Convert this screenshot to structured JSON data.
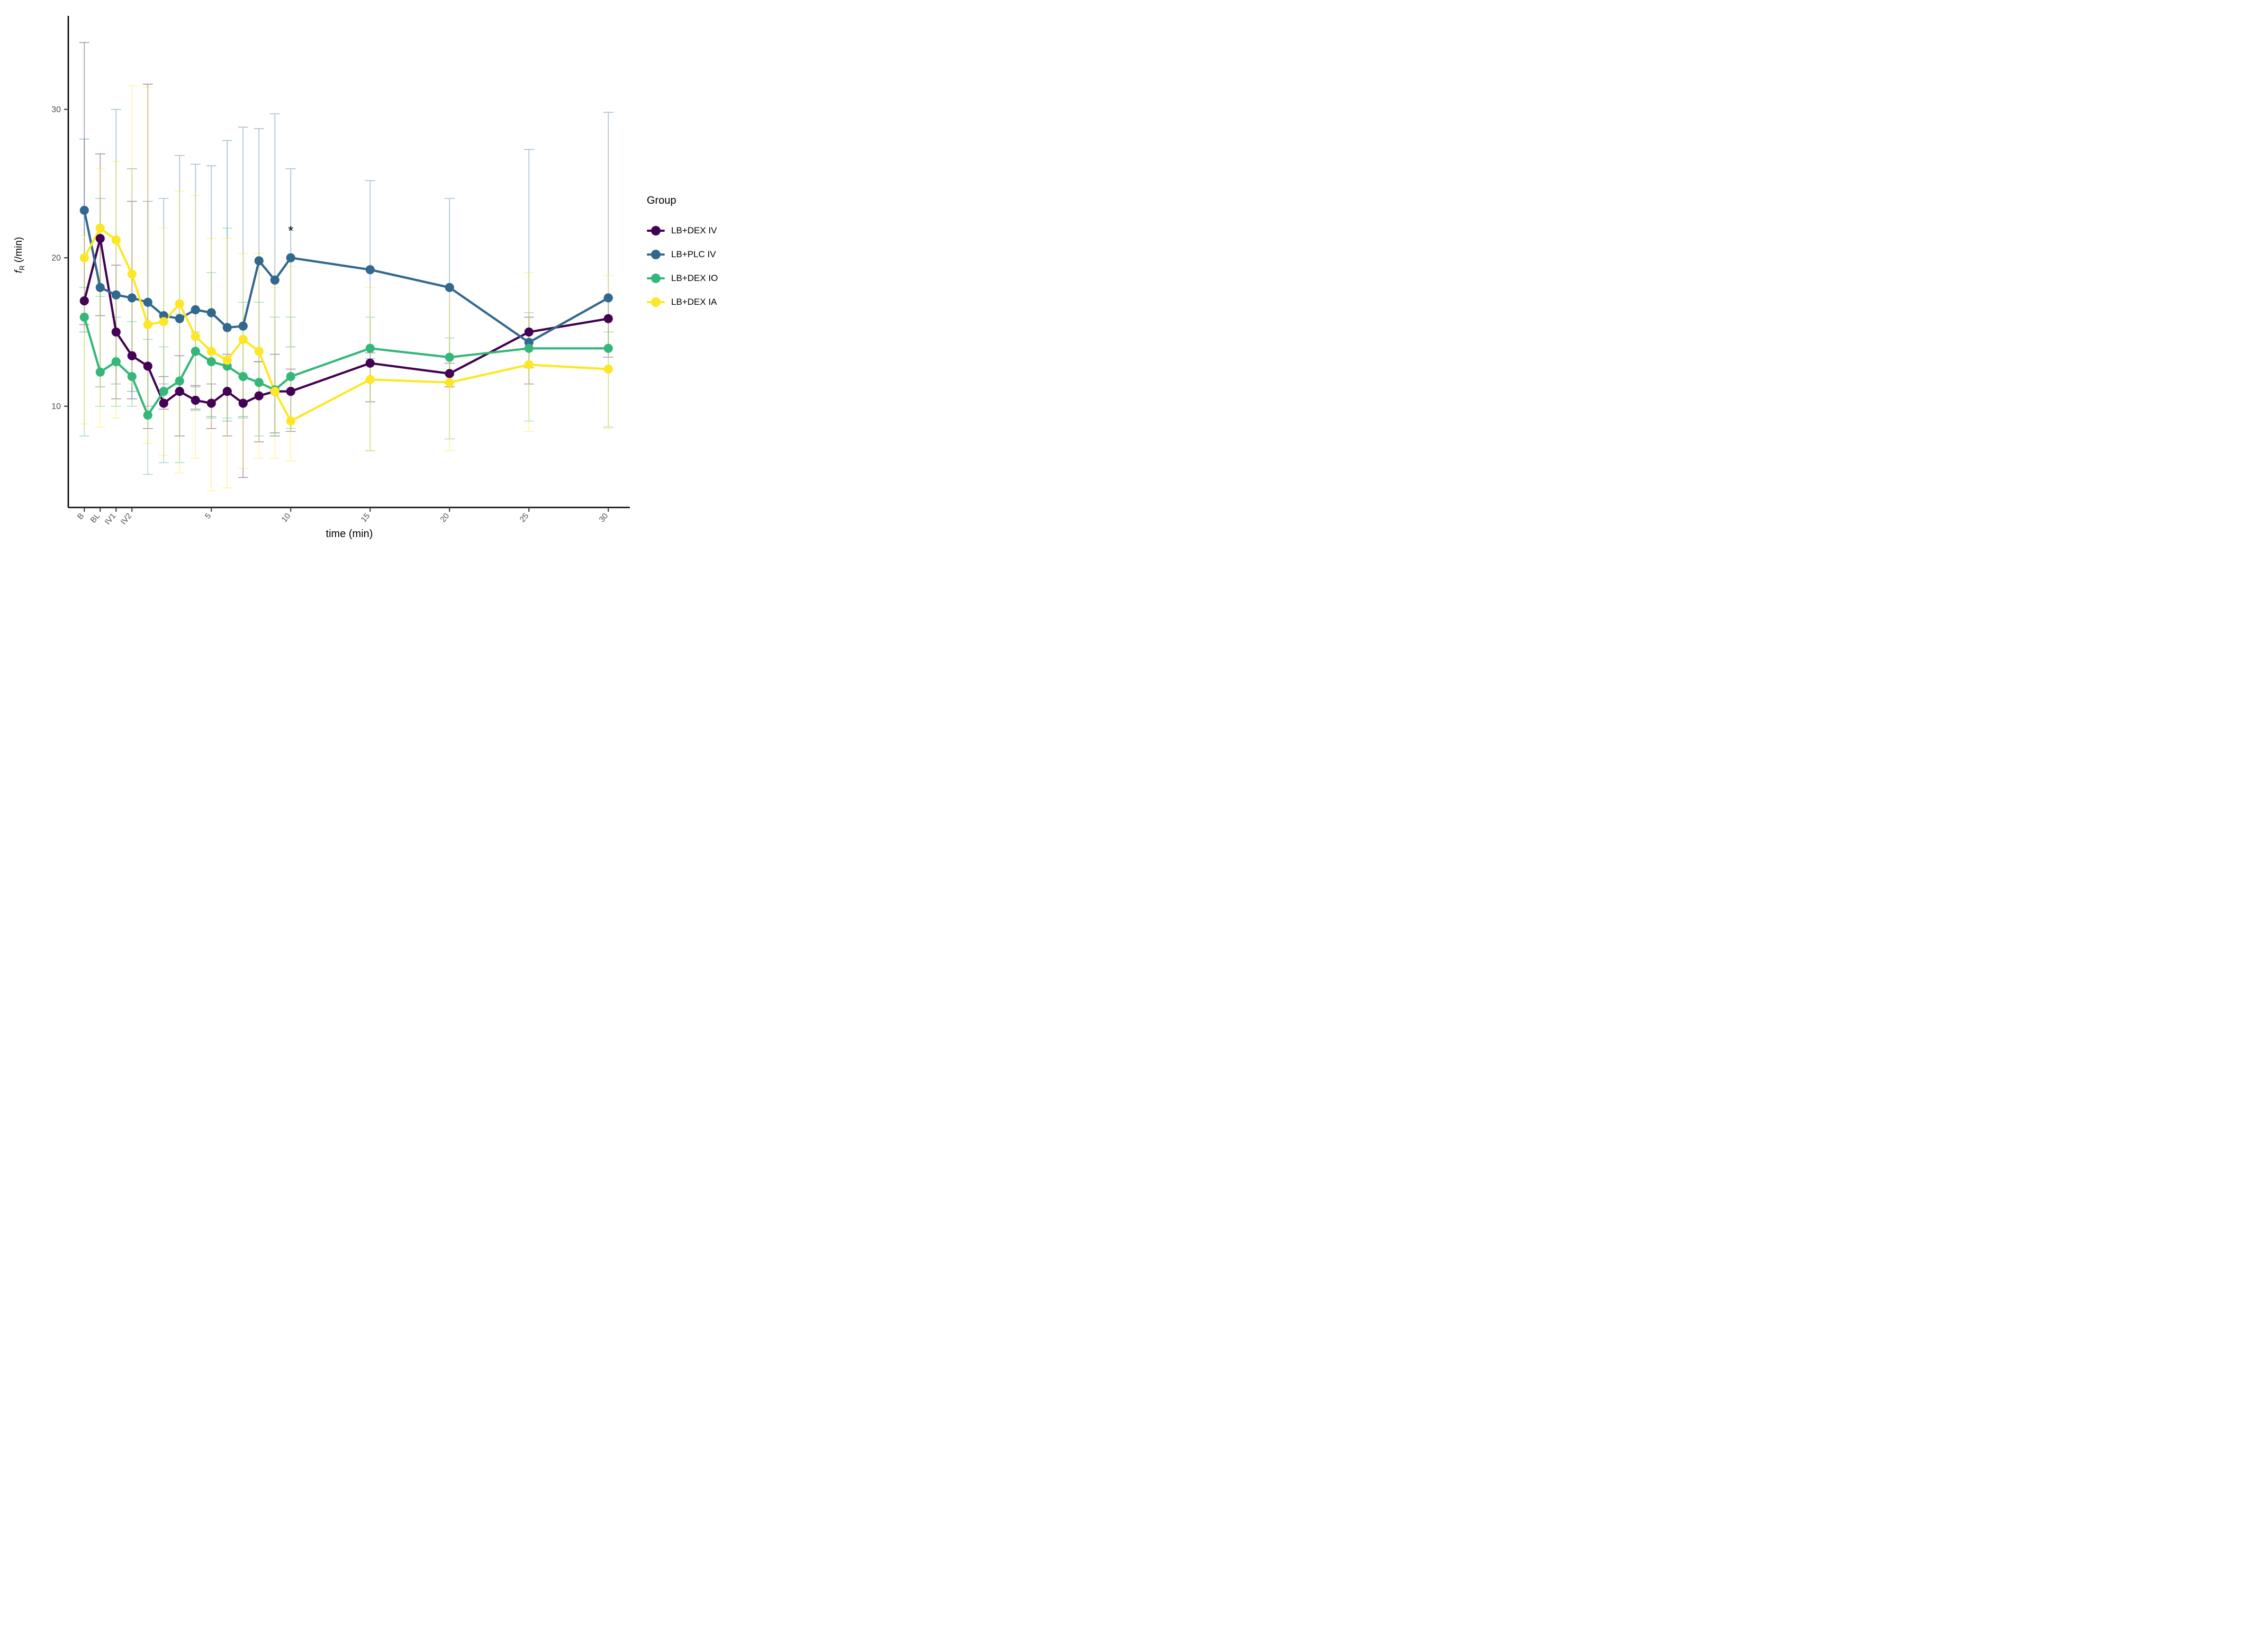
{
  "figure_title": "",
  "chart_data": {
    "type": "line",
    "title": "",
    "xlabel": "time (min)",
    "ylabel": "fR (/min)",
    "ylabel_italic": "f",
    "ylabel_subscript": "R",
    "ylabel_units": "(/min)",
    "legend_title": "Group",
    "grid": false,
    "x_range_note": "B, BL, IV1, IV2 are pre-dose points followed by minutes 1-10, 15, 20, 25, 30",
    "ylim": [
      3.2,
      36
    ],
    "y_ticks": [
      10,
      20,
      30
    ],
    "x_axis_ticks": [
      {
        "pos": -3,
        "label": "B"
      },
      {
        "pos": -2,
        "label": "BL"
      },
      {
        "pos": -1,
        "label": "IV1"
      },
      {
        "pos": 0,
        "label": "IV2"
      },
      {
        "pos": 5,
        "label": "5"
      },
      {
        "pos": 10,
        "label": "10"
      },
      {
        "pos": 15,
        "label": "15"
      },
      {
        "pos": 20,
        "label": "20"
      },
      {
        "pos": 25,
        "label": "25"
      },
      {
        "pos": 30,
        "label": "30"
      }
    ],
    "x_positions": [
      -3,
      -2,
      -1,
      0,
      1,
      2,
      3,
      4,
      5,
      6,
      7,
      8,
      9,
      10,
      15,
      20,
      25,
      30
    ],
    "x_point_labels": [
      "B",
      "BL",
      "IV1",
      "IV2",
      "1",
      "2",
      "3",
      "4",
      "5",
      "6",
      "7",
      "8",
      "9",
      "10",
      "15",
      "20",
      "25",
      "30"
    ],
    "series": [
      {
        "name": "LB+DEX IV",
        "color": "#440154",
        "values": [
          17.1,
          21.3,
          15.0,
          13.4,
          12.7,
          10.2,
          11.0,
          10.4,
          10.2,
          11.0,
          10.2,
          10.7,
          11.0,
          11.0,
          12.9,
          12.2,
          15.0,
          15.9
        ],
        "err_low": [
          15.5,
          16.1,
          10.5,
          10.5,
          8.5,
          9.8,
          8.0,
          9.8,
          8.5,
          8.0,
          5.2,
          7.6,
          8.2,
          8.3,
          10.3,
          11.3,
          11.5,
          13.3
        ],
        "err_high": [
          34.5,
          27.0,
          19.5,
          23.8,
          31.7,
          12.0,
          13.4,
          11.4,
          11.5,
          13.5,
          12.0,
          13.0,
          13.5,
          12.5,
          13.6,
          12.9,
          16.0,
          17.3
        ]
      },
      {
        "name": "LB+PLC IV",
        "color": "#31688E",
        "values": [
          23.2,
          18.0,
          17.5,
          17.3,
          17.0,
          16.1,
          15.9,
          16.5,
          16.3,
          15.3,
          15.4,
          19.8,
          18.5,
          20.0,
          19.2,
          18.0,
          14.3,
          17.3
        ],
        "err_low": [
          15.0,
          11.3,
          11.5,
          11.0,
          10.0,
          11.5,
          11.0,
          11.3,
          9.3,
          9.0,
          9.3,
          13.0,
          8.0,
          14.0,
          13.2,
          12.1,
          12.6,
          13.9
        ],
        "err_high": [
          28.0,
          24.0,
          30.0,
          26.0,
          23.8,
          24.0,
          26.9,
          26.3,
          26.2,
          27.9,
          28.8,
          28.7,
          29.7,
          26.0,
          25.2,
          24.0,
          27.3,
          29.8
        ]
      },
      {
        "name": "LB+DEX IO",
        "color": "#35B779",
        "values": [
          16.0,
          12.3,
          13.0,
          12.0,
          9.4,
          11.0,
          11.7,
          13.7,
          13.0,
          12.7,
          12.0,
          11.6,
          11.1,
          12.0,
          13.9,
          13.3,
          13.9,
          13.9
        ],
        "err_low": [
          8.0,
          10.0,
          10.0,
          10.0,
          5.4,
          6.2,
          6.2,
          9.7,
          9.2,
          9.2,
          9.2,
          8.0,
          8.0,
          8.5,
          7.0,
          7.8,
          9.0,
          8.6
        ],
        "err_high": [
          18.0,
          17.4,
          16.0,
          15.7,
          14.5,
          14.0,
          16.2,
          15.0,
          19.0,
          22.0,
          17.0,
          17.0,
          16.0,
          16.0,
          16.0,
          14.6,
          16.3,
          15.0
        ]
      },
      {
        "name": "LB+DEX IA",
        "color": "#FDE725",
        "values": [
          20.0,
          22.0,
          21.2,
          18.9,
          15.5,
          15.7,
          16.9,
          14.7,
          13.7,
          13.1,
          14.5,
          13.7,
          11.0,
          9.0,
          11.8,
          11.6,
          12.8,
          12.5
        ],
        "err_low": [
          8.8,
          8.6,
          9.2,
          11.5,
          7.5,
          6.7,
          5.5,
          6.5,
          4.3,
          4.5,
          5.8,
          6.5,
          6.5,
          6.3,
          7.0,
          7.0,
          8.3,
          8.5
        ],
        "err_high": [
          21.5,
          26.0,
          26.5,
          31.6,
          31.5,
          22.0,
          24.5,
          24.2,
          21.3,
          21.3,
          20.3,
          20.3,
          18.0,
          19.4,
          18.0,
          18.0,
          19.0,
          18.8
        ]
      }
    ],
    "annotation": {
      "text": "*",
      "x": 10,
      "y": 21.5
    }
  }
}
